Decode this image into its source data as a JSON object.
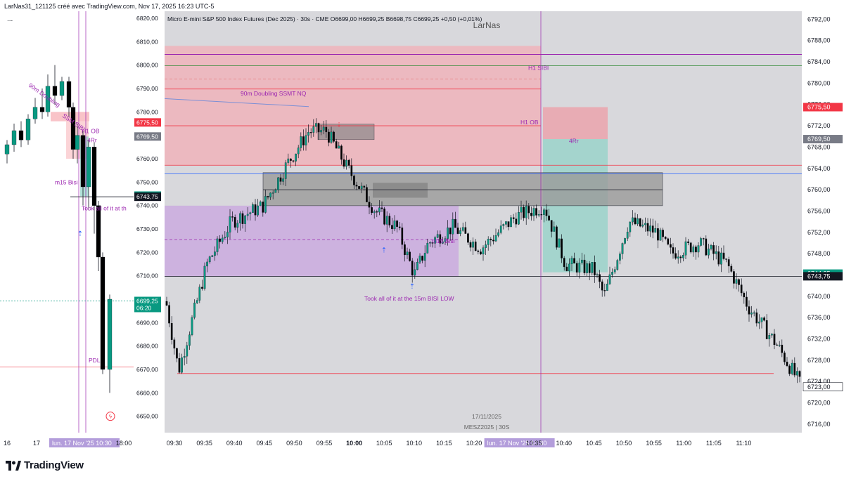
{
  "header": {
    "title": "LarNas31_121125 créé avec TradingView.com, Nov 17, 2025 16:23 UTC-5"
  },
  "left_chart": {
    "menu": "...",
    "price_axis": [
      "6820,00",
      "6810,00",
      "6800,00",
      "6790,00",
      "6780,00",
      "6770,00",
      "6760,00",
      "6750,00",
      "6740,00",
      "6730,00",
      "6720,00",
      "6710,00",
      "6700,00",
      "6690,00",
      "6680,00",
      "6670,00",
      "6660,00",
      "6650,00"
    ],
    "price_tags": [
      {
        "text": "6775,50",
        "color": "#f23645",
        "price": 6775.5
      },
      {
        "text": "6769,50",
        "color": "#787b86",
        "price": 6769.5
      },
      {
        "text": "6744,25",
        "color": "#089981",
        "price": 6744.25
      },
      {
        "text": "6743,75",
        "color": "#131722",
        "price": 6743.75
      },
      {
        "text": "6699,25",
        "color": "#089981",
        "price": 6699.25,
        "sub": "06:20"
      }
    ],
    "annotations": [
      {
        "text": "90m Doubling",
        "color": "#9c27b0"
      },
      {
        "text": "SSM SIBI",
        "color": "#9c27b0"
      },
      {
        "text": "H1 OB",
        "color": "#9c27b0"
      },
      {
        "text": "4Rr",
        "color": "#9c27b0"
      },
      {
        "text": "m15 Bisi",
        "color": "#9c27b0"
      },
      {
        "text": "Took all of it at th",
        "color": "#9c27b0"
      },
      {
        "text": "PDL",
        "color": "#9c27b0"
      }
    ],
    "time_axis": [
      "16",
      "17",
      "lun. 17 Nov '25  10:30",
      "18:00"
    ]
  },
  "main_chart": {
    "title": "Micro E-mini S&P 500 Index Futures (Dec 2025) · 30s · CME  O6699,00  H6699,25  B6698,75  C6699,25  +0,50 (+0,01%)",
    "watermark": "LarNas",
    "date_watermark": "17/11/2025",
    "symbol_watermark": "MESZ2025 | 30S",
    "price_axis": [
      "6792,00",
      "6788,00",
      "6784,00",
      "6780,00",
      "6776,00",
      "6772,00",
      "6768,00",
      "6764,00",
      "6760,00",
      "6756,00",
      "6752,00",
      "6748,00",
      "6744,00",
      "6740,00",
      "6736,00",
      "6732,00",
      "6728,00",
      "6724,00",
      "6720,00",
      "6716,00"
    ],
    "price_tags": [
      {
        "text": "6775,50",
        "color": "#f23645",
        "price": 6775.5
      },
      {
        "text": "6769,50",
        "color": "#787b86",
        "price": 6769.5
      },
      {
        "text": "6744,25",
        "color": "#089981",
        "price": 6744.25
      },
      {
        "text": "6743,75",
        "color": "#131722",
        "price": 6743.75
      },
      {
        "text": "6723,00",
        "color": "#ffffff",
        "price": 6723.0,
        "text_color": "#131722"
      }
    ],
    "annotations": [
      {
        "text": "H1 SIBI",
        "color": "#9c27b0"
      },
      {
        "text": "90m Doubling SSMT NQ",
        "color": "#9c27b0"
      },
      {
        "text": "H1 OB",
        "color": "#9c27b0"
      },
      {
        "text": "4Rr",
        "color": "#9c27b0"
      },
      {
        "text": "m15 Bisi",
        "color": "#9c27b0"
      },
      {
        "text": "Took all of it at the 15m BISI LOW",
        "color": "#9c27b0"
      }
    ],
    "time_axis": [
      "09:30",
      "09:35",
      "09:40",
      "09:45",
      "09:50",
      "09:55",
      "10:00",
      "10:05",
      "10:10",
      "10:15",
      "10:20",
      "lun. 17 Nov '25  10:30",
      "10:35",
      "10:40",
      "10:45",
      "10:50",
      "10:55",
      "11:00",
      "11:05",
      "11:10"
    ],
    "bold_time": "10:00"
  },
  "footer": {
    "brand": "TradingView"
  },
  "colors": {
    "up": "#089981",
    "down": "#000000",
    "zone_red": "#f7a9b0",
    "zone_purple": "#c9a6e0",
    "zone_grey": "#8a8a8a",
    "zone_teal": "#8fd3c6"
  }
}
